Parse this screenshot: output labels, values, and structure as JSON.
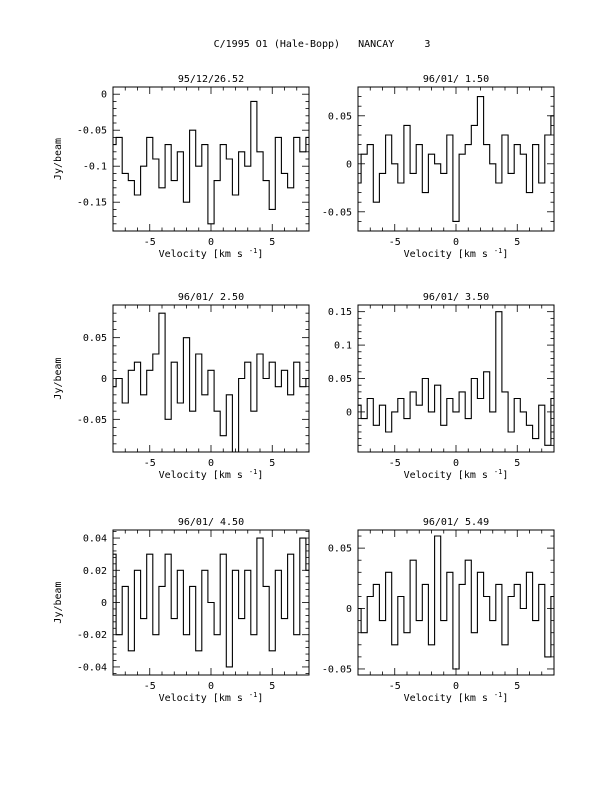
{
  "page": {
    "title": "C/1995 O1 (Hale-Bopp)   NANCAY     3"
  },
  "chart_data": [
    {
      "type": "line",
      "title": "95/12/26.52",
      "xlabel": "Velocity [km s",
      "xlabel_sup": "-1",
      "xlabel_close": "]",
      "ylabel": "Jy/beam",
      "xlim": [
        -8,
        8
      ],
      "ylim": [
        -0.19,
        0.01
      ],
      "xticks": [
        -5,
        0,
        5
      ],
      "xtick_labels": [
        "-5",
        "0",
        "5"
      ],
      "yticks": [
        0,
        -0.05,
        -0.1,
        -0.15
      ],
      "ytick_labels": [
        "0",
        "-0.05",
        "-0.1",
        "-0.15"
      ],
      "series": [
        {
          "x": [
            -8,
            -7.5,
            -7,
            -6.5,
            -6,
            -5.5,
            -5,
            -4.5,
            -4,
            -3.5,
            -3,
            -2.5,
            -2,
            -1.5,
            -1,
            -0.5,
            0,
            0.5,
            1,
            1.5,
            2,
            2.5,
            3,
            3.5,
            4,
            4.5,
            5,
            5.5,
            6,
            6.5,
            7,
            7.5,
            8
          ],
          "values": [
            -0.07,
            -0.06,
            -0.11,
            -0.12,
            -0.14,
            -0.1,
            -0.06,
            -0.09,
            -0.13,
            -0.07,
            -0.12,
            -0.08,
            -0.15,
            -0.05,
            -0.1,
            -0.07,
            -0.18,
            -0.12,
            -0.07,
            -0.09,
            -0.14,
            -0.08,
            -0.1,
            -0.01,
            -0.08,
            -0.12,
            -0.16,
            -0.06,
            -0.11,
            -0.13,
            -0.06,
            -0.08,
            -0.06
          ]
        }
      ]
    },
    {
      "type": "line",
      "title": "96/01/ 1.50",
      "xlabel": "Velocity [km s",
      "xlabel_sup": "-1",
      "xlabel_close": "]",
      "ylabel": "",
      "xlim": [
        -8,
        8
      ],
      "ylim": [
        -0.07,
        0.08
      ],
      "xticks": [
        -5,
        0,
        5
      ],
      "xtick_labels": [
        "-5",
        "0",
        "5"
      ],
      "yticks": [
        0.05,
        0,
        -0.05
      ],
      "ytick_labels": [
        "0.05",
        "0",
        "-0.05"
      ],
      "series": [
        {
          "x": [
            -8,
            -7.5,
            -7,
            -6.5,
            -6,
            -5.5,
            -5,
            -4.5,
            -4,
            -3.5,
            -3,
            -2.5,
            -2,
            -1.5,
            -1,
            -0.5,
            0,
            0.5,
            1,
            1.5,
            2,
            2.5,
            3,
            3.5,
            4,
            4.5,
            5,
            5.5,
            6,
            6.5,
            7,
            7.5,
            8
          ],
          "values": [
            -0.02,
            0.01,
            0.02,
            -0.04,
            -0.01,
            0.03,
            0.0,
            -0.02,
            0.04,
            -0.01,
            0.02,
            -0.03,
            0.01,
            0.0,
            -0.01,
            0.03,
            -0.06,
            0.01,
            0.02,
            0.04,
            0.07,
            0.02,
            0.0,
            -0.02,
            0.03,
            -0.01,
            0.02,
            0.01,
            -0.03,
            0.02,
            -0.02,
            0.03,
            0.05
          ]
        }
      ]
    },
    {
      "type": "line",
      "title": "96/01/ 2.50",
      "xlabel": "Velocity [km s",
      "xlabel_sup": "-1",
      "xlabel_close": "]",
      "ylabel": "Jy/beam",
      "xlim": [
        -8,
        8
      ],
      "ylim": [
        -0.09,
        0.09
      ],
      "xticks": [
        -5,
        0,
        5
      ],
      "xtick_labels": [
        "-5",
        "0",
        "5"
      ],
      "yticks": [
        0.05,
        0,
        -0.05
      ],
      "ytick_labels": [
        "0.05",
        "0",
        "-0.05"
      ],
      "series": [
        {
          "x": [
            -8,
            -7.5,
            -7,
            -6.5,
            -6,
            -5.5,
            -5,
            -4.5,
            -4,
            -3.5,
            -3,
            -2.5,
            -2,
            -1.5,
            -1,
            -0.5,
            0,
            0.5,
            1,
            1.5,
            2,
            2.5,
            3,
            3.5,
            4,
            4.5,
            5,
            5.5,
            6,
            6.5,
            7,
            7.5,
            8
          ],
          "values": [
            -0.01,
            0.0,
            -0.03,
            0.01,
            0.02,
            -0.02,
            0.01,
            0.03,
            0.08,
            -0.05,
            0.02,
            -0.03,
            0.05,
            -0.04,
            0.03,
            -0.02,
            0.01,
            -0.04,
            -0.07,
            -0.02,
            -0.09,
            0.0,
            0.02,
            -0.04,
            0.03,
            0.0,
            0.02,
            -0.01,
            0.01,
            -0.02,
            0.02,
            -0.01,
            0.0
          ]
        }
      ]
    },
    {
      "type": "line",
      "title": "96/01/ 3.50",
      "xlabel": "Velocity [km s",
      "xlabel_sup": "-1",
      "xlabel_close": "]",
      "ylabel": "",
      "xlim": [
        -8,
        8
      ],
      "ylim": [
        -0.06,
        0.16
      ],
      "xticks": [
        -5,
        0,
        5
      ],
      "xtick_labels": [
        "-5",
        "0",
        "5"
      ],
      "yticks": [
        0.15,
        0.1,
        0.05,
        0
      ],
      "ytick_labels": [
        "0.15",
        "0.1",
        "0.05",
        "0"
      ],
      "series": [
        {
          "x": [
            -8,
            -7.5,
            -7,
            -6.5,
            -6,
            -5.5,
            -5,
            -4.5,
            -4,
            -3.5,
            -3,
            -2.5,
            -2,
            -1.5,
            -1,
            -0.5,
            0,
            0.5,
            1,
            1.5,
            2,
            2.5,
            3,
            3.5,
            4,
            4.5,
            5,
            5.5,
            6,
            6.5,
            7,
            7.5,
            8
          ],
          "values": [
            0.01,
            -0.01,
            0.02,
            -0.02,
            0.01,
            -0.03,
            0.0,
            0.02,
            -0.01,
            0.03,
            0.01,
            0.05,
            0.0,
            0.04,
            -0.02,
            0.02,
            0.0,
            0.03,
            -0.01,
            0.05,
            0.02,
            0.06,
            0.0,
            0.15,
            0.03,
            -0.03,
            0.02,
            0.0,
            -0.02,
            -0.04,
            0.01,
            -0.05,
            0.02
          ]
        }
      ]
    },
    {
      "type": "line",
      "title": "96/01/ 4.50",
      "xlabel": "Velocity [km s",
      "xlabel_sup": "-1",
      "xlabel_close": "]",
      "ylabel": "Jy/beam",
      "xlim": [
        -8,
        8
      ],
      "ylim": [
        -0.045,
        0.045
      ],
      "xticks": [
        -5,
        0,
        5
      ],
      "xtick_labels": [
        "-5",
        "0",
        "5"
      ],
      "yticks": [
        0.04,
        0.02,
        0,
        -0.02,
        -0.04
      ],
      "ytick_labels": [
        "0.04",
        "0.02",
        "0",
        "-0.02",
        "-0.04"
      ],
      "series": [
        {
          "x": [
            -8,
            -7.5,
            -7,
            -6.5,
            -6,
            -5.5,
            -5,
            -4.5,
            -4,
            -3.5,
            -3,
            -2.5,
            -2,
            -1.5,
            -1,
            -0.5,
            0,
            0.5,
            1,
            1.5,
            2,
            2.5,
            3,
            3.5,
            4,
            4.5,
            5,
            5.5,
            6,
            6.5,
            7,
            7.5,
            8
          ],
          "values": [
            0.03,
            -0.02,
            0.01,
            -0.03,
            0.02,
            -0.01,
            0.03,
            -0.02,
            0.01,
            0.03,
            -0.01,
            0.02,
            -0.02,
            0.01,
            -0.03,
            0.02,
            0.0,
            -0.02,
            0.03,
            -0.04,
            0.02,
            -0.01,
            0.02,
            -0.02,
            0.04,
            0.01,
            -0.03,
            0.02,
            -0.01,
            0.03,
            -0.02,
            0.04,
            0.02
          ]
        }
      ]
    },
    {
      "type": "line",
      "title": "96/01/ 5.49",
      "xlabel": "Velocity [km s",
      "xlabel_sup": "-1",
      "xlabel_close": "]",
      "ylabel": "",
      "xlim": [
        -8,
        8
      ],
      "ylim": [
        -0.055,
        0.065
      ],
      "xticks": [
        -5,
        0,
        5
      ],
      "xtick_labels": [
        "-5",
        "0",
        "5"
      ],
      "yticks": [
        0.05,
        0,
        -0.05
      ],
      "ytick_labels": [
        "0.05",
        "0",
        "-0.05"
      ],
      "series": [
        {
          "x": [
            -8,
            -7.5,
            -7,
            -6.5,
            -6,
            -5.5,
            -5,
            -4.5,
            -4,
            -3.5,
            -3,
            -2.5,
            -2,
            -1.5,
            -1,
            -0.5,
            0,
            0.5,
            1,
            1.5,
            2,
            2.5,
            3,
            3.5,
            4,
            4.5,
            5,
            5.5,
            6,
            6.5,
            7,
            7.5,
            8
          ],
          "values": [
            0.0,
            -0.02,
            0.01,
            0.02,
            -0.01,
            0.03,
            -0.03,
            0.01,
            -0.02,
            0.04,
            -0.01,
            0.02,
            -0.03,
            0.06,
            -0.01,
            0.03,
            -0.05,
            0.02,
            0.04,
            -0.02,
            0.03,
            0.01,
            -0.01,
            0.02,
            -0.03,
            0.01,
            0.02,
            0.0,
            0.03,
            -0.01,
            0.02,
            -0.04,
            0.01
          ]
        }
      ]
    }
  ]
}
